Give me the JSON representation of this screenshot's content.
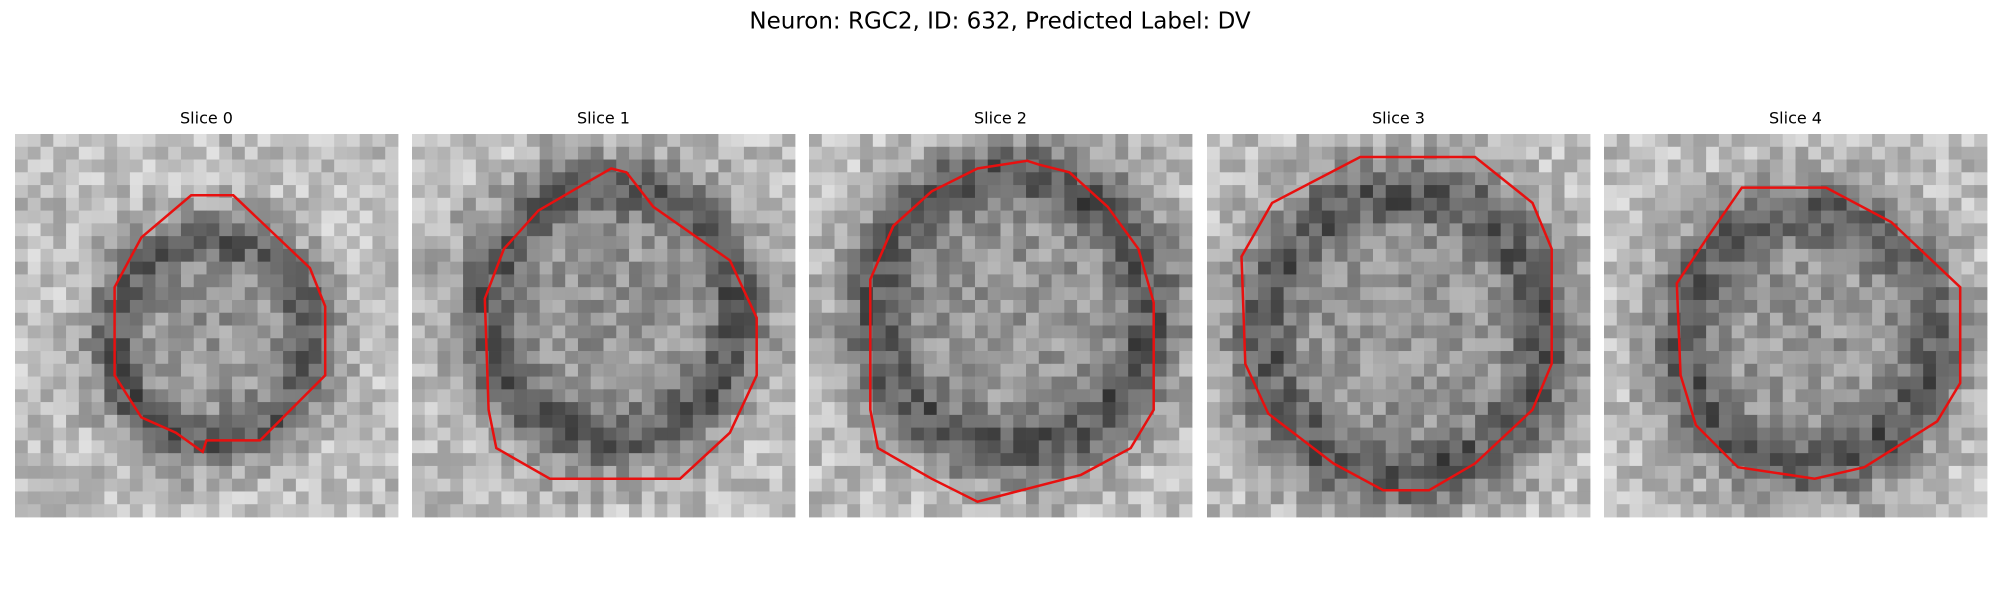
{
  "title": "Neuron: RGC2, ID: 632, Predicted Label: DV",
  "panels": [
    {
      "title": "Slice 0"
    },
    {
      "title": "Slice 1"
    },
    {
      "title": "Slice 2"
    },
    {
      "title": "Slice 3"
    },
    {
      "title": "Slice 4"
    }
  ]
}
